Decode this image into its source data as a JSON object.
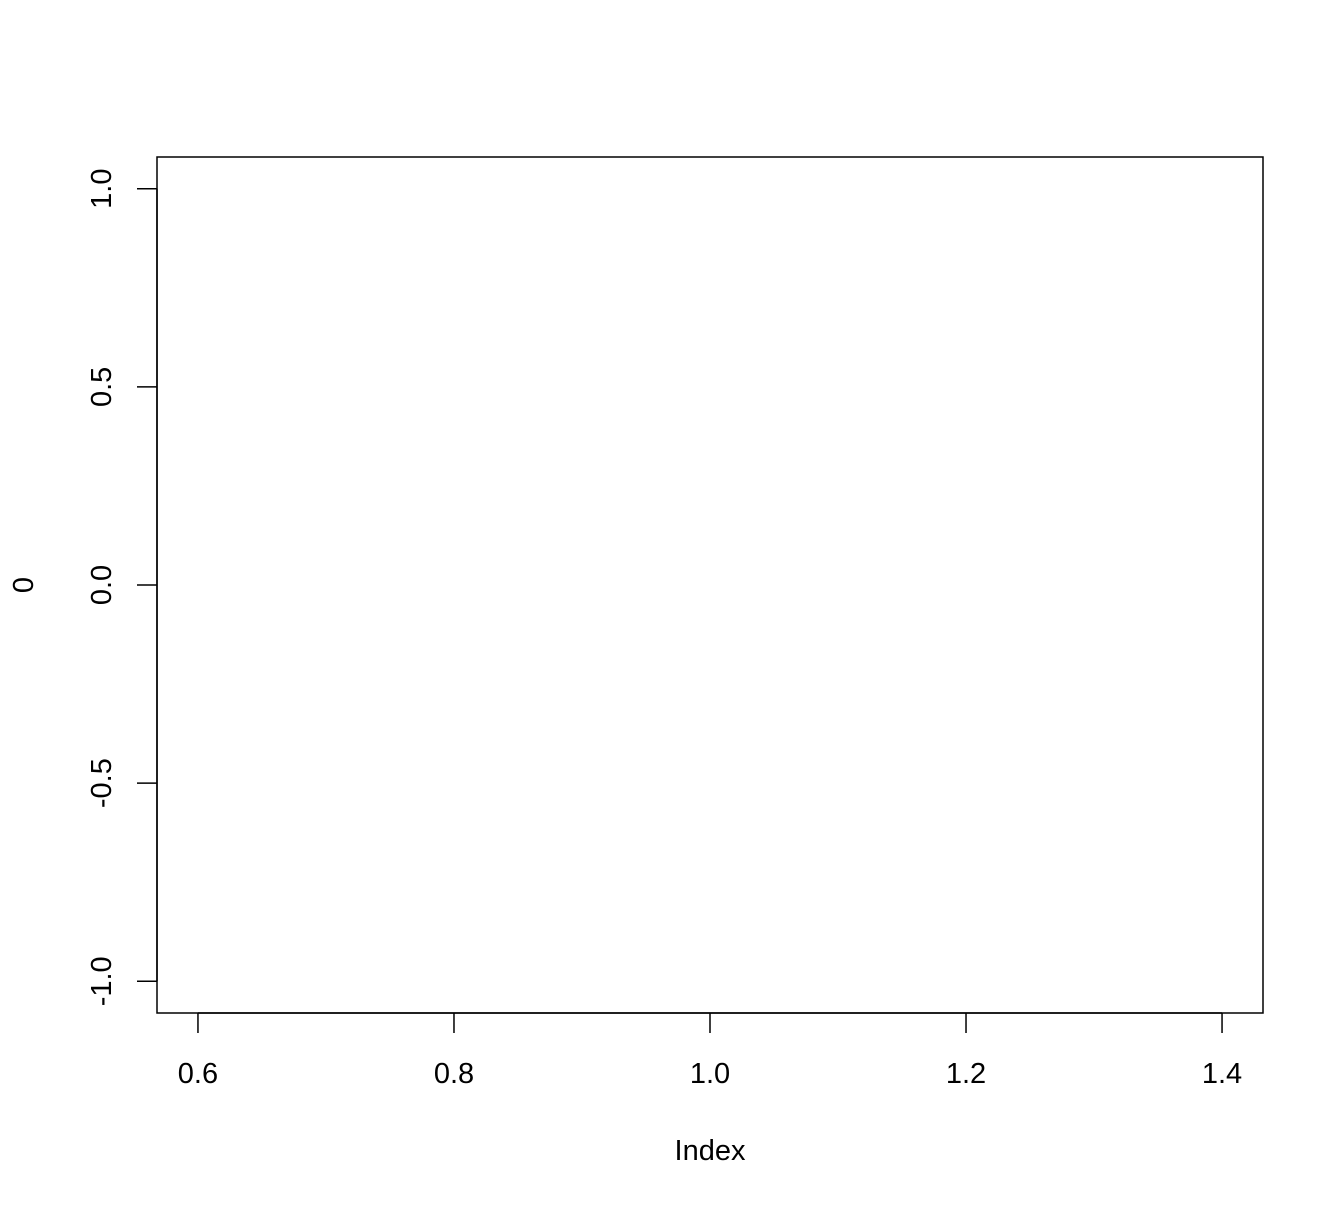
{
  "chart_data": {
    "type": "scatter",
    "title": "",
    "xlabel": "Index",
    "ylabel": "0",
    "xlim": [
      0.568,
      1.432
    ],
    "ylim": [
      -1.08,
      1.08
    ],
    "x_ticks": [
      "0.6",
      "0.8",
      "1.0",
      "1.2",
      "1.4"
    ],
    "y_ticks": [
      "-1.0",
      "-0.5",
      "0.0",
      "0.5",
      "1.0"
    ],
    "series": [],
    "grid": false
  }
}
